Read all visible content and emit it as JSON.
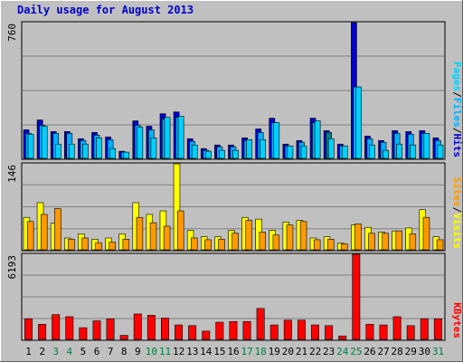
{
  "title": "Daily usage for August 2013",
  "colors": {
    "frame_bg": "#c0c0c0",
    "panel_bg": "#c0c0c0",
    "grid": "#808080",
    "title": "#0000cc",
    "weekday_label": "#000000",
    "weekend_label": "#008040",
    "hits": "#0000cc",
    "files": "#00b0ff",
    "pages": "#00d0ff",
    "visits": "#ffff00",
    "sites": "#ff9900",
    "kbytes": "#ff0000"
  },
  "chart_data": [
    {
      "type": "bar",
      "panel": "top",
      "ymax_label": "760",
      "ylim": [
        0,
        760
      ],
      "legend": [
        {
          "name": "Pages",
          "color_key": "pages"
        },
        {
          "name": "/",
          "color_key": "separator"
        },
        {
          "name": "Files",
          "color_key": "files"
        },
        {
          "name": "/",
          "color_key": "separator"
        },
        {
          "name": "Hits",
          "color_key": "hits"
        }
      ],
      "categories": [
        "1",
        "2",
        "3",
        "4",
        "5",
        "6",
        "7",
        "8",
        "9",
        "10",
        "11",
        "12",
        "13",
        "14",
        "15",
        "16",
        "17",
        "18",
        "19",
        "20",
        "21",
        "22",
        "23",
        "24",
        "25",
        "26",
        "27",
        "28",
        "29",
        "30",
        "31"
      ],
      "series": [
        {
          "name": "Hits",
          "color_key": "hits",
          "values": [
            160,
            215,
            150,
            150,
            110,
            145,
            120,
            40,
            210,
            180,
            250,
            260,
            110,
            55,
            75,
            75,
            115,
            165,
            225,
            80,
            100,
            225,
            155,
            80,
            760,
            125,
            100,
            155,
            150,
            155,
            115
          ]
        },
        {
          "name": "Files",
          "color_key": "files",
          "values": [
            140,
            185,
            140,
            140,
            100,
            130,
            105,
            35,
            185,
            160,
            220,
            230,
            95,
            45,
            65,
            65,
            100,
            145,
            200,
            70,
            90,
            200,
            145,
            70,
            400,
            110,
            90,
            140,
            135,
            140,
            100
          ]
        },
        {
          "name": "Pages",
          "color_key": "pages",
          "values": [
            135,
            180,
            80,
            80,
            80,
            115,
            55,
            35,
            175,
            115,
            230,
            235,
            75,
            40,
            45,
            45,
            105,
            105,
            200,
            70,
            70,
            210,
            110,
            70,
            400,
            75,
            45,
            80,
            75,
            140,
            75
          ]
        }
      ],
      "highlight": {
        "day": "23",
        "series": "Files",
        "color": "#008080"
      }
    },
    {
      "type": "bar",
      "panel": "middle",
      "ymax_label": "146",
      "ylim": [
        0,
        146
      ],
      "legend": [
        {
          "name": "Sites",
          "color_key": "sites"
        },
        {
          "name": "/",
          "color_key": "separator"
        },
        {
          "name": "Visits",
          "color_key": "visits"
        }
      ],
      "categories": [
        "1",
        "2",
        "3",
        "4",
        "5",
        "6",
        "7",
        "8",
        "9",
        "10",
        "11",
        "12",
        "13",
        "14",
        "15",
        "16",
        "17",
        "18",
        "19",
        "20",
        "21",
        "22",
        "23",
        "24",
        "25",
        "26",
        "27",
        "28",
        "29",
        "30",
        "31"
      ],
      "series": [
        {
          "name": "Visits",
          "color_key": "visits",
          "values": [
            55,
            80,
            45,
            20,
            27,
            18,
            20,
            27,
            80,
            60,
            66,
            146,
            33,
            22,
            22,
            33,
            55,
            52,
            33,
            47,
            50,
            20,
            22,
            11,
            42,
            38,
            30,
            32,
            37,
            68,
            22
          ]
        },
        {
          "name": "Sites",
          "color_key": "sites",
          "values": [
            48,
            60,
            70,
            18,
            20,
            12,
            13,
            18,
            55,
            46,
            40,
            66,
            20,
            17,
            18,
            28,
            50,
            30,
            25,
            42,
            48,
            17,
            18,
            10,
            44,
            28,
            28,
            32,
            27,
            55,
            17
          ]
        }
      ]
    },
    {
      "type": "bar",
      "panel": "bottom",
      "ymax_label": "6193",
      "ylim": [
        0,
        6193
      ],
      "legend": [
        {
          "name": "KBytes",
          "color_key": "kbytes"
        }
      ],
      "categories": [
        "1",
        "2",
        "3",
        "4",
        "5",
        "6",
        "7",
        "8",
        "9",
        "10",
        "11",
        "12",
        "13",
        "14",
        "15",
        "16",
        "17",
        "18",
        "19",
        "20",
        "21",
        "22",
        "23",
        "24",
        "25",
        "26",
        "27",
        "28",
        "29",
        "30",
        "31"
      ],
      "series": [
        {
          "name": "KBytes",
          "color_key": "kbytes",
          "values": [
            1500,
            1100,
            1800,
            1650,
            850,
            1350,
            1500,
            290,
            1850,
            1750,
            1550,
            1050,
            1000,
            600,
            1250,
            1300,
            1300,
            2250,
            1050,
            1400,
            1400,
            1050,
            1000,
            250,
            6193,
            1100,
            1050,
            1650,
            1000,
            1500,
            1500
          ]
        }
      ]
    }
  ],
  "weekend_days": [
    "3",
    "4",
    "10",
    "11",
    "17",
    "18",
    "24",
    "25",
    "31"
  ]
}
